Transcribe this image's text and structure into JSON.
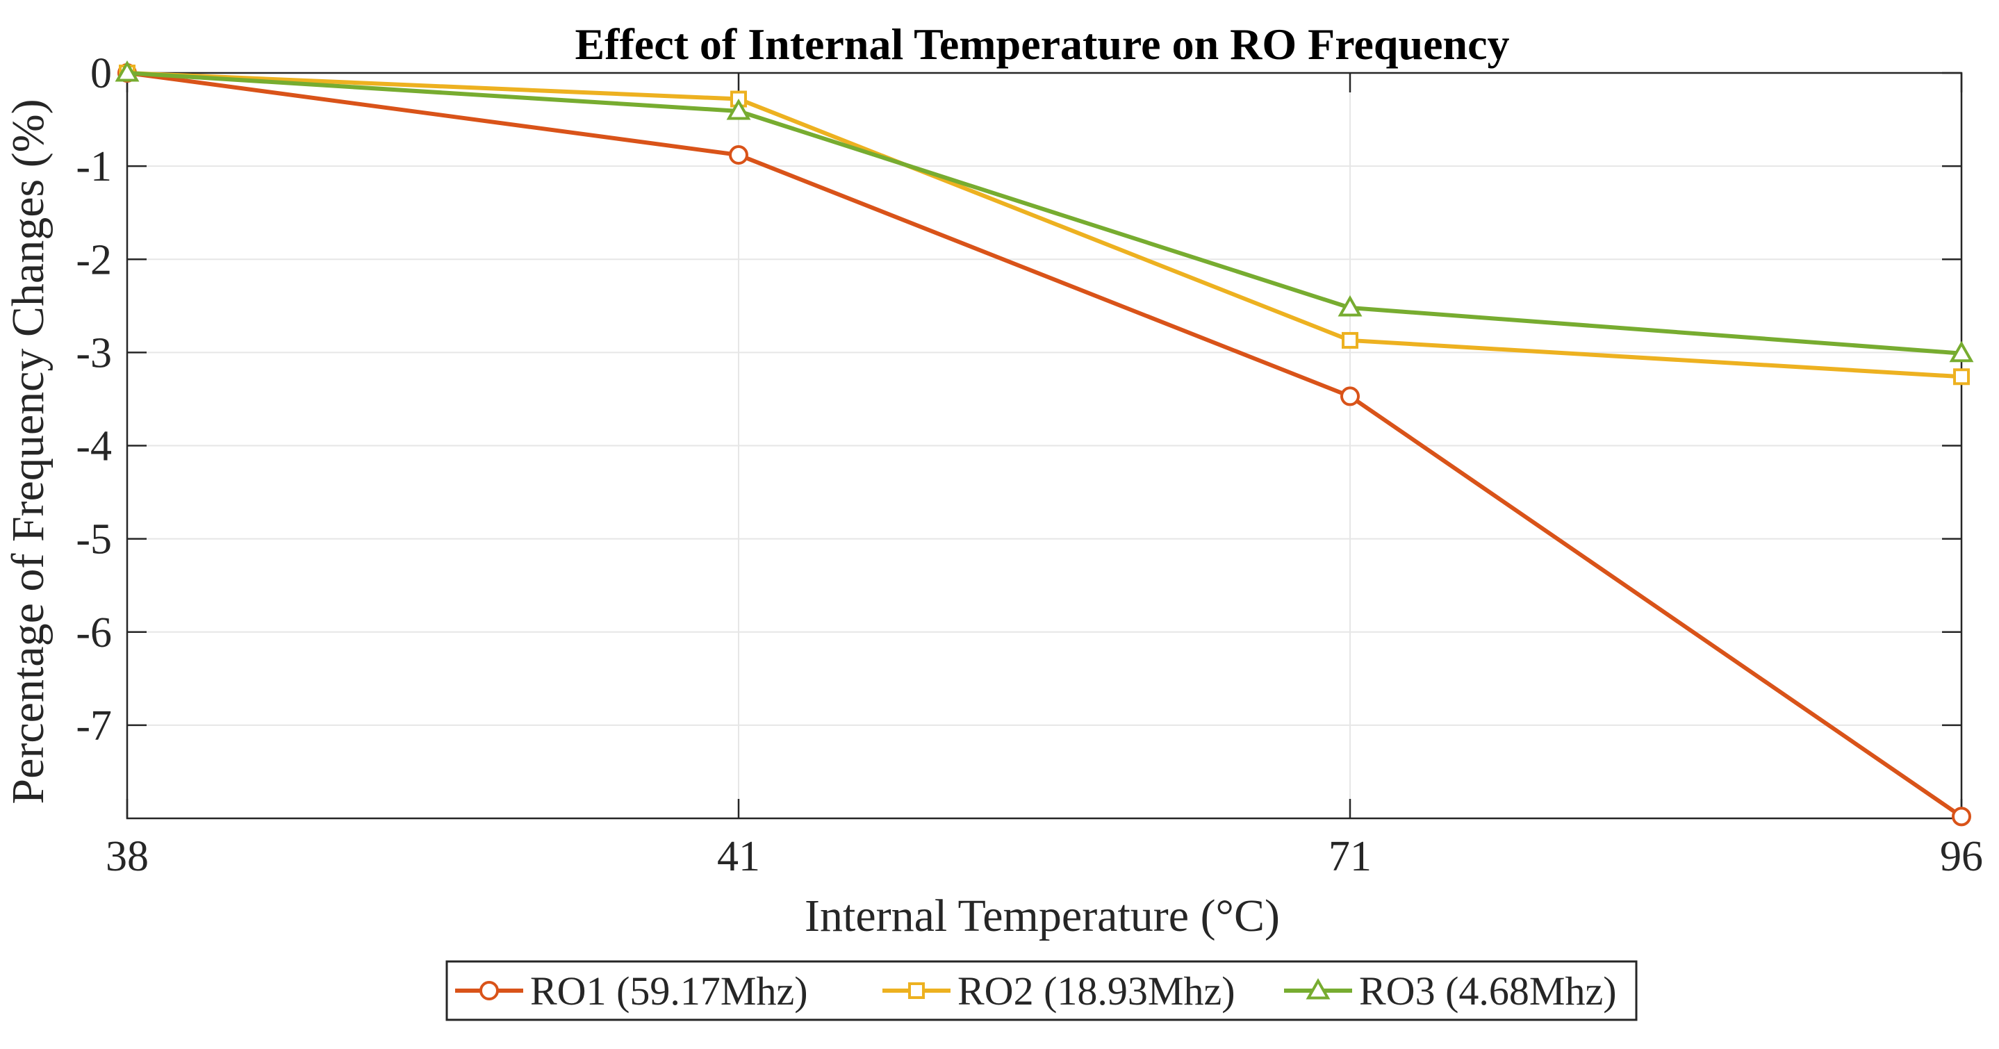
{
  "chart_data": {
    "type": "line",
    "title": "Effect of Internal Temperature on RO Frequency",
    "xlabel": "Internal Temperature (°C)",
    "ylabel": "Percentage of Frequency Changes (%)",
    "categories": [
      "38",
      "41",
      "71",
      "96"
    ],
    "ylim": [
      -8,
      0
    ],
    "yticks": [
      0,
      -1,
      -2,
      -3,
      -4,
      -5,
      -6,
      -7
    ],
    "ytick_labels": [
      "0",
      "-1",
      "-2",
      "-3",
      "-4",
      "-5",
      "-6",
      "-7"
    ],
    "grid": true,
    "legend_position": "bottom-center",
    "series": [
      {
        "name": "RO1 (59.17Mhz)",
        "values": [
          0,
          -0.88,
          -3.47,
          -7.98
        ],
        "color": "#D95319",
        "marker": "circle"
      },
      {
        "name": "RO2 (18.93Mhz)",
        "values": [
          0,
          -0.28,
          -2.87,
          -3.26
        ],
        "color": "#EDB120",
        "marker": "square"
      },
      {
        "name": "RO3 (4.68Mhz)",
        "values": [
          0,
          -0.41,
          -2.52,
          -3.01
        ],
        "color": "#77AC30",
        "marker": "triangle"
      }
    ]
  }
}
